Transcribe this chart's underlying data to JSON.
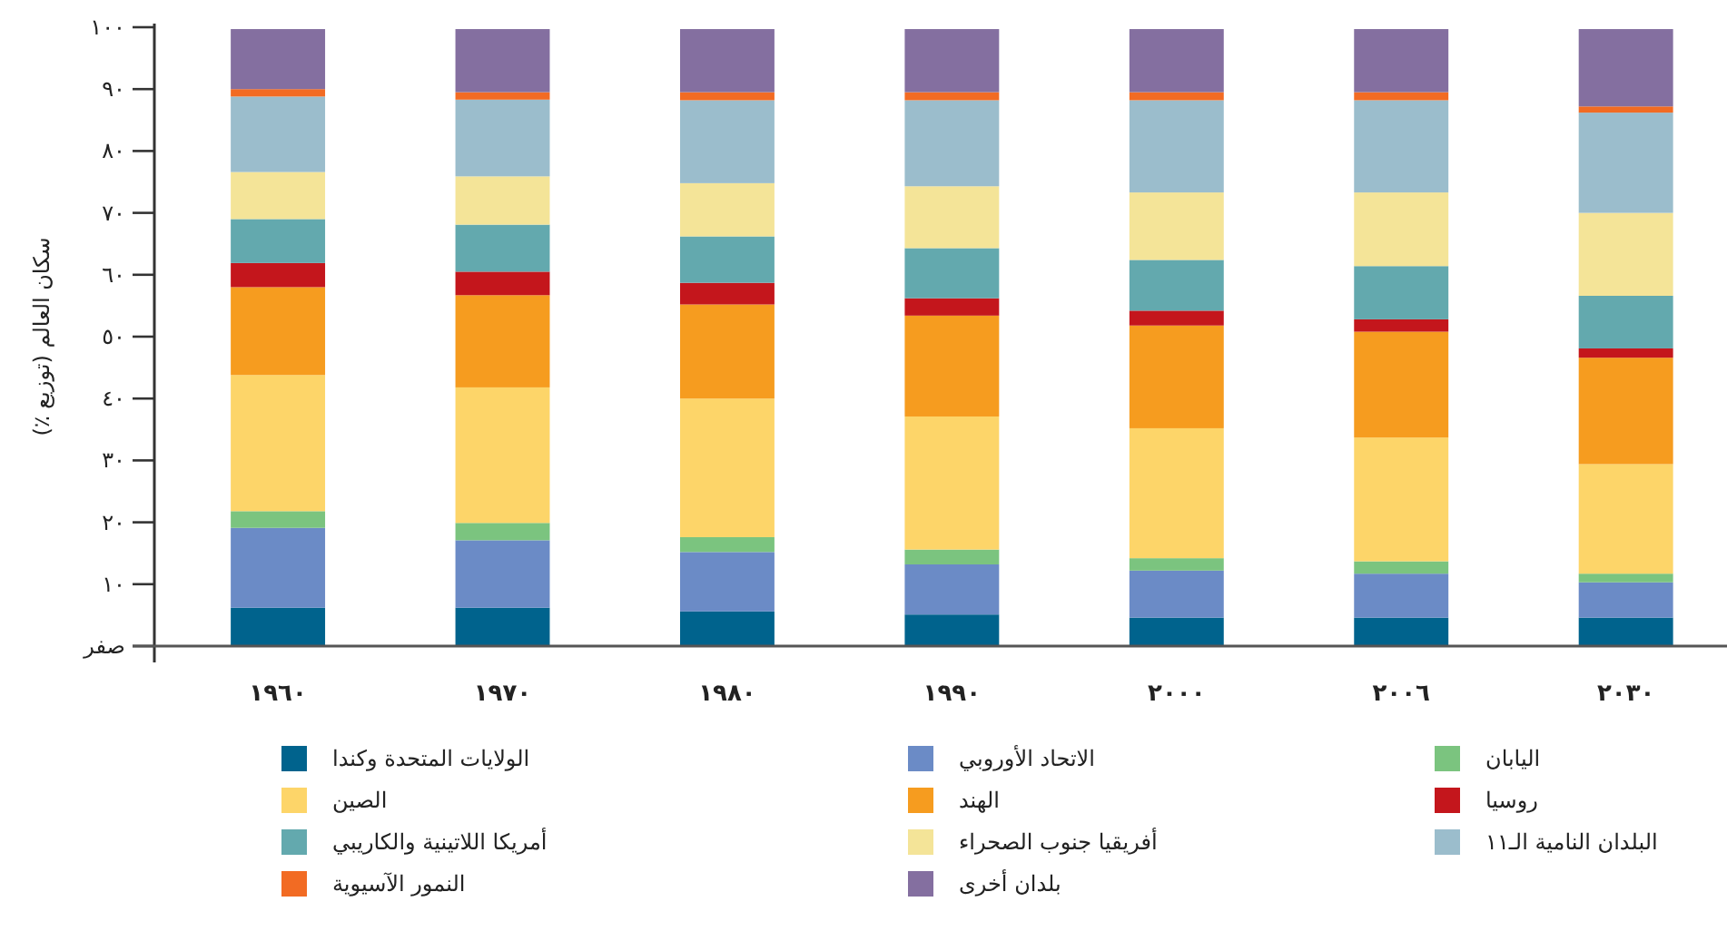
{
  "chart_data": {
    "type": "bar",
    "stacked": true,
    "ylabel": "سكان العالم (توزيع ٪)",
    "categories": [
      "١٩٦٠",
      "١٩٧٠",
      "١٩٨٠",
      "١٩٩٠",
      "٢٠٠٠",
      "٢٠٠٦",
      "٢٠٣٠"
    ],
    "ylim": [
      0,
      100
    ],
    "yticks": [
      {
        "value": 0,
        "label": "صفر"
      },
      {
        "value": 10,
        "label": "١٠"
      },
      {
        "value": 20,
        "label": "٢٠"
      },
      {
        "value": 30,
        "label": "٣٠"
      },
      {
        "value": 40,
        "label": "٤٠"
      },
      {
        "value": 50,
        "label": "٥٠"
      },
      {
        "value": 60,
        "label": "٦٠"
      },
      {
        "value": 70,
        "label": "٧٠"
      },
      {
        "value": 80,
        "label": "٨٠"
      },
      {
        "value": 90,
        "label": "٩٠"
      },
      {
        "value": 100,
        "label": "١٠٠"
      }
    ],
    "legend": "bottom",
    "series": [
      {
        "name": "الولايات المتحدة وكندا",
        "color": "#00638d",
        "values": [
          6.2,
          6.2,
          5.6,
          5.1,
          4.6,
          4.6,
          4.6
        ]
      },
      {
        "name": "الاتحاد الأوروبي",
        "color": "#6b8bc6",
        "values": [
          12.9,
          10.9,
          9.6,
          8.1,
          7.6,
          7.1,
          5.7
        ]
      },
      {
        "name": "اليابان",
        "color": "#7bc47f",
        "values": [
          2.7,
          2.8,
          2.4,
          2.4,
          2.0,
          2.0,
          1.4
        ]
      },
      {
        "name": "الصين",
        "color": "#fdd569",
        "values": [
          22.0,
          21.9,
          22.4,
          21.5,
          21.0,
          20.0,
          17.7
        ]
      },
      {
        "name": "الهند",
        "color": "#f69c1f",
        "values": [
          14.2,
          14.9,
          15.2,
          16.3,
          16.6,
          17.1,
          17.2
        ]
      },
      {
        "name": "روسيا",
        "color": "#c4161c",
        "values": [
          3.9,
          3.8,
          3.5,
          2.8,
          2.4,
          2.0,
          1.5
        ]
      },
      {
        "name": "أمريكا اللاتينية والكاريبي",
        "color": "#63a9ae",
        "values": [
          7.1,
          7.6,
          7.5,
          8.1,
          8.2,
          8.6,
          8.5
        ]
      },
      {
        "name": "أفريقيا جنوب الصحراء",
        "color": "#f4e498",
        "values": [
          7.6,
          7.8,
          8.6,
          10.0,
          10.9,
          11.9,
          13.4
        ]
      },
      {
        "name": "البلدان النامية الـ١١",
        "color": "#9bbdcc",
        "values": [
          12.2,
          12.4,
          13.4,
          13.9,
          14.9,
          14.9,
          16.2
        ]
      },
      {
        "name": "النمور الآسيوية",
        "color": "#f26b23",
        "values": [
          1.2,
          1.2,
          1.3,
          1.3,
          1.3,
          1.3,
          1.0
        ]
      },
      {
        "name": "بلدان أخرى",
        "color": "#846fa0",
        "values": [
          9.7,
          10.2,
          10.2,
          10.2,
          10.2,
          10.2,
          12.5
        ]
      }
    ]
  }
}
